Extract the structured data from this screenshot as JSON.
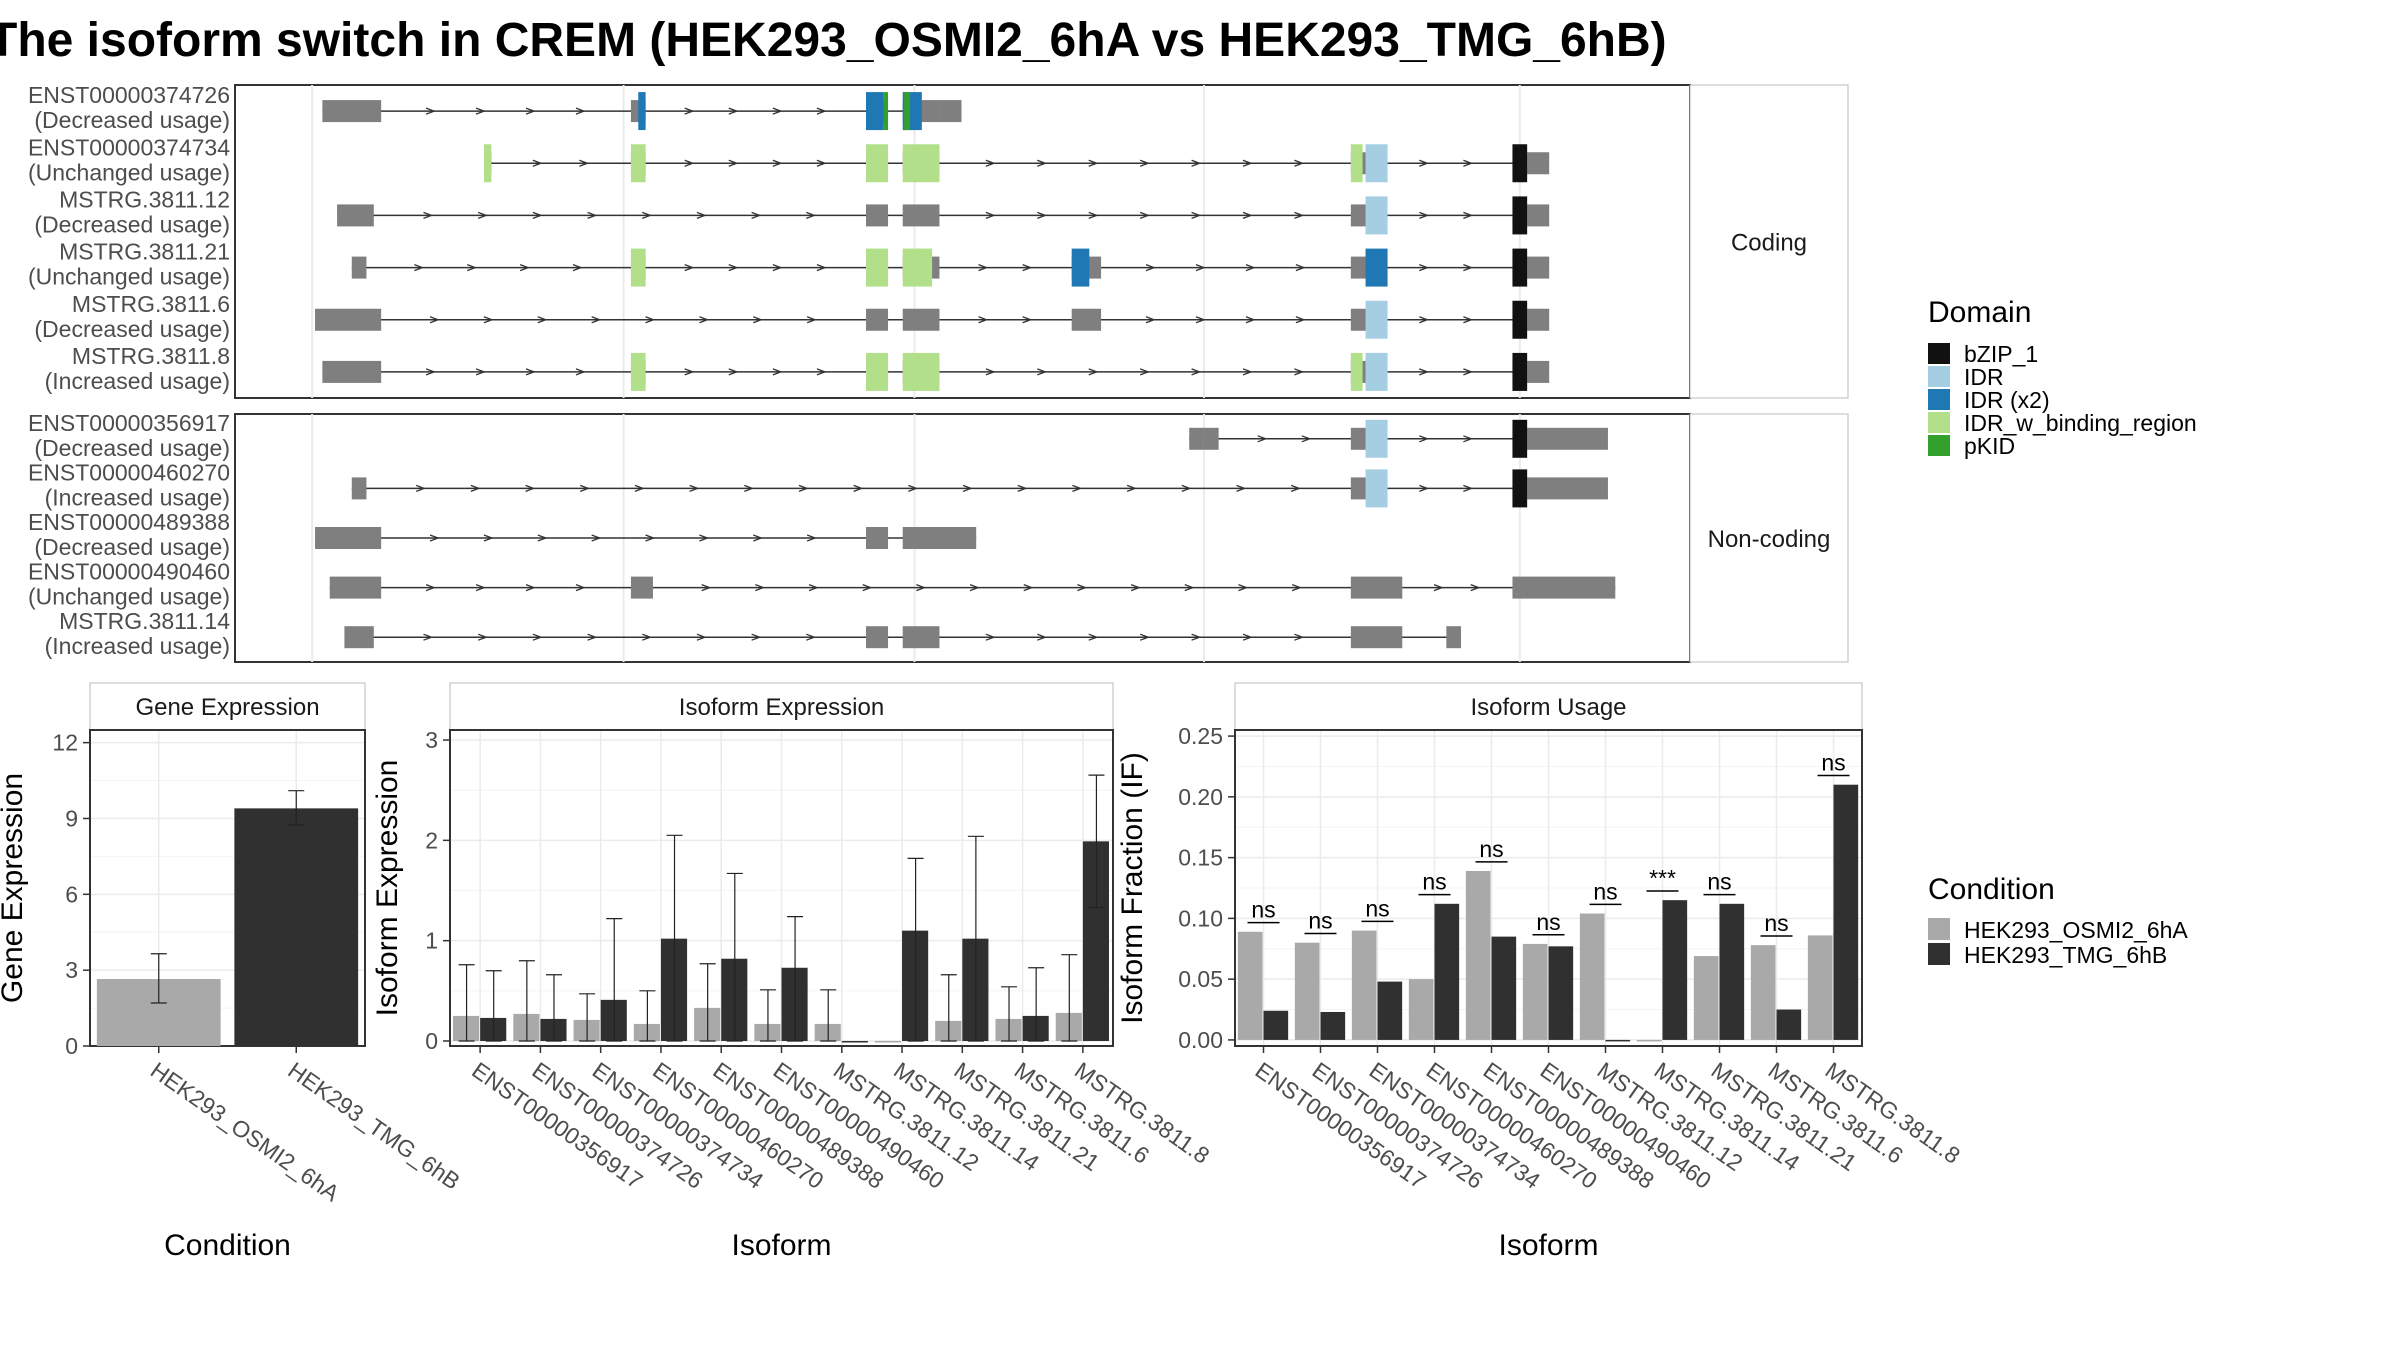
{
  "title": "The isoform switch in CREM (HEK293_OSMI2_6hA vs HEK293_TMG_6hB)",
  "colors": {
    "exon": "#7f7f7f",
    "cond1": "#a9a9a9",
    "cond2": "#303030",
    "domains": {
      "bZIP_1": "#111111",
      "IDR": "#a6cee3",
      "IDR (x2)": "#1f78b4",
      "IDR_w_binding_region": "#b2df8a",
      "pKID": "#33a02c"
    }
  },
  "structure": {
    "panels": [
      {
        "label": "Coding",
        "isoforms": [
          {
            "name": "ENST00000374726",
            "usage": "(Decreased usage)",
            "exons": [
              [
                0.19,
                0.23
              ],
              [
                0.4,
                0.41
              ],
              [
                0.56,
                0.575
              ],
              [
                0.585,
                0.61
              ]
            ],
            "domains": [
              [
                "IDR (x2)",
                0.405,
                0.41
              ],
              [
                "IDR (x2)",
                0.56,
                0.572
              ],
              [
                "pKID",
                0.572,
                0.575
              ],
              [
                "IDR (x2)",
                0.585,
                0.598
              ],
              [
                "pKID",
                0.586,
                0.59
              ]
            ],
            "tail": [
              0.61,
              0.625
            ]
          },
          {
            "name": "ENST00000374734",
            "usage": "(Unchanged usage)",
            "exons": [
              [
                0.3,
                0.305
              ],
              [
                0.4,
                0.41
              ],
              [
                0.56,
                0.575
              ],
              [
                0.585,
                0.61
              ],
              [
                0.89,
                0.91
              ],
              [
                1.0,
                1.01
              ]
            ],
            "domains": [
              [
                "IDR_w_binding_region",
                0.3,
                0.305
              ],
              [
                "IDR_w_binding_region",
                0.4,
                0.41
              ],
              [
                "IDR_w_binding_region",
                0.56,
                0.575
              ],
              [
                "IDR_w_binding_region",
                0.585,
                0.61
              ],
              [
                "IDR_w_binding_region",
                0.89,
                0.898
              ],
              [
                "IDR",
                0.9,
                0.915
              ],
              [
                "bZIP_1",
                1.0,
                1.01
              ]
            ],
            "tail": [
              1.01,
              1.025
            ]
          },
          {
            "name": "MSTRG.3811.12",
            "usage": "(Decreased usage)",
            "exons": [
              [
                0.2,
                0.225
              ],
              [
                0.56,
                0.575
              ],
              [
                0.585,
                0.61
              ],
              [
                0.89,
                0.91
              ],
              [
                1.0,
                1.01
              ]
            ],
            "domains": [
              [
                "IDR",
                0.9,
                0.915
              ],
              [
                "bZIP_1",
                1.0,
                1.01
              ]
            ],
            "tail": [
              1.01,
              1.025
            ]
          },
          {
            "name": "MSTRG.3811.21",
            "usage": "(Unchanged usage)",
            "exons": [
              [
                0.21,
                0.22
              ],
              [
                0.4,
                0.41
              ],
              [
                0.56,
                0.575
              ],
              [
                0.585,
                0.61
              ],
              [
                0.7,
                0.72
              ],
              [
                0.89,
                0.91
              ],
              [
                1.0,
                1.01
              ]
            ],
            "domains": [
              [
                "IDR_w_binding_region",
                0.4,
                0.41
              ],
              [
                "IDR_w_binding_region",
                0.56,
                0.575
              ],
              [
                "IDR_w_binding_region",
                0.585,
                0.605
              ],
              [
                "IDR (x2)",
                0.7,
                0.712
              ],
              [
                "IDR (x2)",
                0.9,
                0.915
              ],
              [
                "bZIP_1",
                1.0,
                1.01
              ]
            ],
            "tail": [
              1.01,
              1.025
            ]
          },
          {
            "name": "MSTRG.3811.6",
            "usage": "(Decreased usage)",
            "exons": [
              [
                0.185,
                0.23
              ],
              [
                0.56,
                0.575
              ],
              [
                0.585,
                0.61
              ],
              [
                0.7,
                0.72
              ],
              [
                0.89,
                0.91
              ],
              [
                1.0,
                1.01
              ]
            ],
            "domains": [
              [
                "IDR",
                0.9,
                0.915
              ],
              [
                "bZIP_1",
                1.0,
                1.01
              ]
            ],
            "tail": [
              1.01,
              1.025
            ]
          },
          {
            "name": "MSTRG.3811.8",
            "usage": "(Increased usage)",
            "exons": [
              [
                0.19,
                0.23
              ],
              [
                0.4,
                0.41
              ],
              [
                0.56,
                0.575
              ],
              [
                0.585,
                0.61
              ],
              [
                0.89,
                0.91
              ],
              [
                1.0,
                1.01
              ]
            ],
            "domains": [
              [
                "IDR_w_binding_region",
                0.4,
                0.41
              ],
              [
                "IDR_w_binding_region",
                0.56,
                0.575
              ],
              [
                "IDR_w_binding_region",
                0.585,
                0.61
              ],
              [
                "IDR_w_binding_region",
                0.89,
                0.898
              ],
              [
                "IDR",
                0.9,
                0.915
              ],
              [
                "bZIP_1",
                1.0,
                1.01
              ]
            ],
            "tail": [
              1.01,
              1.025
            ]
          }
        ]
      },
      {
        "label": "Non-coding",
        "isoforms": [
          {
            "name": "ENST00000356917",
            "usage": "(Decreased usage)",
            "exons": [
              [
                0.78,
                0.79
              ],
              [
                0.79,
                0.8
              ],
              [
                0.89,
                0.91
              ],
              [
                1.0,
                1.01
              ]
            ],
            "domains": [
              [
                "IDR",
                0.9,
                0.915
              ],
              [
                "bZIP_1",
                1.0,
                1.01
              ]
            ],
            "tail": [
              1.01,
              1.065
            ]
          },
          {
            "name": "ENST00000460270",
            "usage": "(Increased usage)",
            "exons": [
              [
                0.21,
                0.22
              ],
              [
                0.89,
                0.91
              ],
              [
                1.0,
                1.01
              ]
            ],
            "domains": [
              [
                "IDR",
                0.9,
                0.915
              ],
              [
                "bZIP_1",
                1.0,
                1.01
              ]
            ],
            "tail": [
              1.01,
              1.065
            ]
          },
          {
            "name": "ENST00000489388",
            "usage": "(Decreased usage)",
            "exons": [
              [
                0.185,
                0.23
              ],
              [
                0.56,
                0.575
              ],
              [
                0.585,
                0.635
              ]
            ],
            "domains": [],
            "tail": null
          },
          {
            "name": "ENST00000490460",
            "usage": "(Unchanged usage)",
            "exons": [
              [
                0.195,
                0.23
              ],
              [
                0.4,
                0.415
              ],
              [
                0.89,
                0.925
              ],
              [
                1.0,
                1.07
              ]
            ],
            "domains": [],
            "tail": null
          },
          {
            "name": "MSTRG.3811.14",
            "usage": "(Increased usage)",
            "exons": [
              [
                0.205,
                0.225
              ],
              [
                0.56,
                0.575
              ],
              [
                0.585,
                0.61
              ],
              [
                0.89,
                0.925
              ],
              [
                0.955,
                0.965
              ]
            ],
            "domains": [],
            "tail": null
          }
        ]
      }
    ],
    "legend_title": "Domain",
    "legend": [
      "bZIP_1",
      "IDR",
      "IDR (x2)",
      "IDR_w_binding_region",
      "pKID"
    ]
  },
  "chart_data": [
    {
      "type": "bar",
      "title": "Gene Expression",
      "xlabel": "Condition",
      "ylabel": "Gene Expression",
      "ylim": [
        0,
        12.5
      ],
      "yticks": [
        0,
        3,
        6,
        9,
        12
      ],
      "categories": [
        "HEK293_OSMI2_6hA",
        "HEK293_TMG_6hB"
      ],
      "values": [
        2.65,
        9.4
      ],
      "errors": [
        [
          1.7,
          3.65
        ],
        [
          8.75,
          10.1
        ]
      ]
    },
    {
      "type": "bar",
      "title": "Isoform Expression",
      "xlabel": "Isoform",
      "ylabel": "Isoform Expression",
      "ylim": [
        -0.05,
        3.1
      ],
      "yticks": [
        0,
        1,
        2,
        3
      ],
      "categories": [
        "ENST00000356917",
        "ENST00000374726",
        "ENST00000374734",
        "ENST00000460270",
        "ENST00000489388",
        "ENST00000490460",
        "MSTRG.3811.12",
        "MSTRG.3811.14",
        "MSTRG.3811.21",
        "MSTRG.3811.6",
        "MSTRG.3811.8"
      ],
      "series": [
        {
          "name": "HEK293_OSMI2_6hA",
          "values": [
            0.25,
            0.27,
            0.21,
            0.17,
            0.33,
            0.17,
            0.17,
            0.0,
            0.2,
            0.22,
            0.28
          ],
          "errors": [
            [
              0,
              0.76
            ],
            [
              0,
              0.8
            ],
            [
              0,
              0.47
            ],
            [
              0,
              0.5
            ],
            [
              0,
              0.77
            ],
            [
              0,
              0.51
            ],
            [
              0,
              0.51
            ],
            [
              0,
              0
            ],
            [
              0,
              0.66
            ],
            [
              0,
              0.54
            ],
            [
              0,
              0.86
            ]
          ]
        },
        {
          "name": "HEK293_TMG_6hB",
          "values": [
            0.23,
            0.22,
            0.41,
            1.02,
            0.82,
            0.73,
            0.0,
            1.1,
            1.02,
            0.25,
            1.99
          ],
          "errors": [
            [
              0,
              0.7
            ],
            [
              0,
              0.66
            ],
            [
              0,
              1.22
            ],
            [
              0,
              2.05
            ],
            [
              0,
              1.67
            ],
            [
              0,
              1.24
            ],
            [
              0,
              0
            ],
            [
              0,
              1.82
            ],
            [
              0,
              2.04
            ],
            [
              0,
              0.73
            ],
            [
              1.33,
              2.65
            ]
          ]
        }
      ]
    },
    {
      "type": "bar",
      "title": "Isoform Usage",
      "xlabel": "Isoform",
      "ylabel": "Isoform Fraction (IF)",
      "ylim": [
        -0.005,
        0.255
      ],
      "yticks": [
        0.0,
        0.05,
        0.1,
        0.15,
        0.2,
        0.25
      ],
      "ytick_labels": [
        "0.00",
        "0.05",
        "0.10",
        "0.15",
        "0.20",
        "0.25"
      ],
      "categories": [
        "ENST00000356917",
        "ENST00000374726",
        "ENST00000374734",
        "ENST00000460270",
        "ENST00000489388",
        "ENST00000490460",
        "MSTRG.3811.12",
        "MSTRG.3811.14",
        "MSTRG.3811.21",
        "MSTRG.3811.6",
        "MSTRG.3811.8"
      ],
      "series": [
        {
          "name": "HEK293_OSMI2_6hA",
          "values": [
            0.089,
            0.08,
            0.09,
            0.05,
            0.139,
            0.079,
            0.104,
            0.0,
            0.069,
            0.078,
            0.086
          ]
        },
        {
          "name": "HEK293_TMG_6hB",
          "values": [
            0.024,
            0.023,
            0.048,
            0.112,
            0.085,
            0.077,
            0.0,
            0.115,
            0.112,
            0.025,
            0.21
          ]
        }
      ],
      "significance": [
        "ns",
        "ns",
        "ns",
        "ns",
        "ns",
        "ns",
        "ns",
        "***",
        "ns",
        "ns",
        "ns"
      ],
      "sig_heights": [
        0.099,
        0.09,
        0.1,
        0.122,
        0.149,
        0.089,
        0.114,
        0.125,
        0.122,
        0.088,
        0.22
      ]
    }
  ],
  "condition_legend": {
    "title": "Condition",
    "items": [
      "HEK293_OSMI2_6hA",
      "HEK293_TMG_6hB"
    ]
  }
}
